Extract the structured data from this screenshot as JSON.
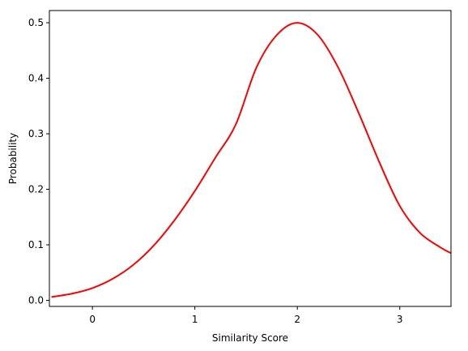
{
  "chart_data": {
    "type": "line",
    "title": "",
    "xlabel": "Similarity Score",
    "ylabel": "Probability",
    "xlim": [
      -0.42,
      3.5
    ],
    "ylim": [
      -0.011,
      0.522
    ],
    "xticks": [
      0,
      1,
      2,
      3
    ],
    "yticks": [
      0.0,
      0.1,
      0.2,
      0.3,
      0.4,
      0.5
    ],
    "xtick_labels": [
      "0",
      "1",
      "2",
      "3"
    ],
    "ytick_labels": [
      "0.0",
      "0.1",
      "0.2",
      "0.3",
      "0.4",
      "0.5"
    ],
    "grid": false,
    "legend": "none",
    "series": [
      {
        "color": "#ff0000",
        "x": [
          -0.4,
          -0.2,
          0.0,
          0.2,
          0.4,
          0.6,
          0.8,
          1.0,
          1.2,
          1.4,
          1.6,
          1.8,
          2.0,
          2.2,
          2.4,
          2.6,
          2.8,
          3.0,
          3.2,
          3.4,
          3.5
        ],
        "y": [
          0.006,
          0.012,
          0.022,
          0.039,
          0.064,
          0.099,
          0.144,
          0.197,
          0.257,
          0.317,
          0.419,
          0.478,
          0.5,
          0.478,
          0.419,
          0.337,
          0.249,
          0.17,
          0.121,
          0.095,
          0.085
        ]
      }
    ]
  }
}
